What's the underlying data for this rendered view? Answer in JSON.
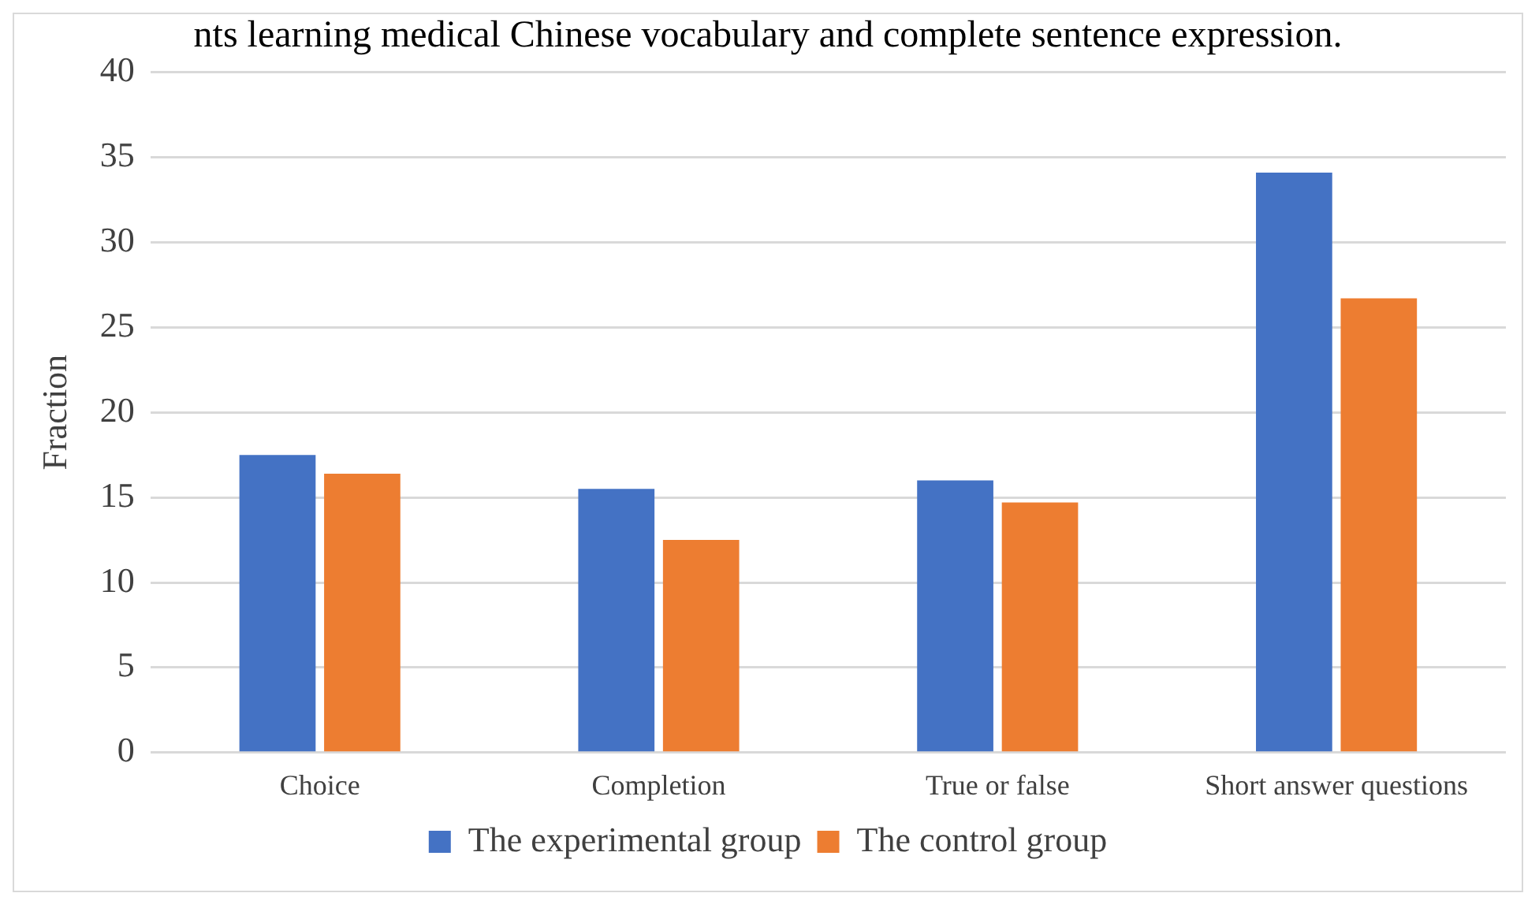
{
  "chart_data": {
    "type": "bar",
    "title": "nts learning medical Chinese vocabulary and complete sentence expression.",
    "ylabel": "Fraction",
    "categories": [
      "Choice",
      "Completion",
      "True or false",
      "Short answer questions"
    ],
    "series": [
      {
        "name": "The experimental group",
        "color": "#4472c4",
        "values": [
          17.5,
          15.5,
          16,
          34.1
        ]
      },
      {
        "name": "The control group",
        "color": "#ed7d31",
        "values": [
          16.4,
          12.5,
          14.7,
          26.7
        ]
      }
    ],
    "ylim": [
      0,
      40
    ],
    "yticks": [
      0,
      5,
      10,
      15,
      20,
      25,
      30,
      35,
      40
    ],
    "grid": "y",
    "legend": "bottom"
  }
}
